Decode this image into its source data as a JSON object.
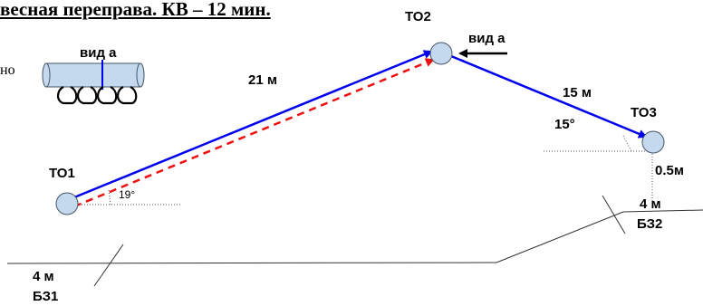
{
  "title": "весная переправа. КВ – 12 мин.",
  "cut_text": "но",
  "points": {
    "to1": "ТО1",
    "to2": "ТО2",
    "to3": "ТО3"
  },
  "labels": {
    "view_a_top": "вид а",
    "view_a_inset": "вид а",
    "len_main": "21 м",
    "len_second": "15 м",
    "angle_main": "19°",
    "angle_second": "15°",
    "height_to3": "0.5м",
    "bz1_dist": "4 м",
    "bz1_name": "БЗ1",
    "bz2_dist": "4 м",
    "bz2_name": "БЗ2"
  },
  "colors": {
    "rope": "#0000ee",
    "dashed": "#ee1111",
    "node_fill": "#c5d9ee",
    "node_stroke": "#445566"
  }
}
